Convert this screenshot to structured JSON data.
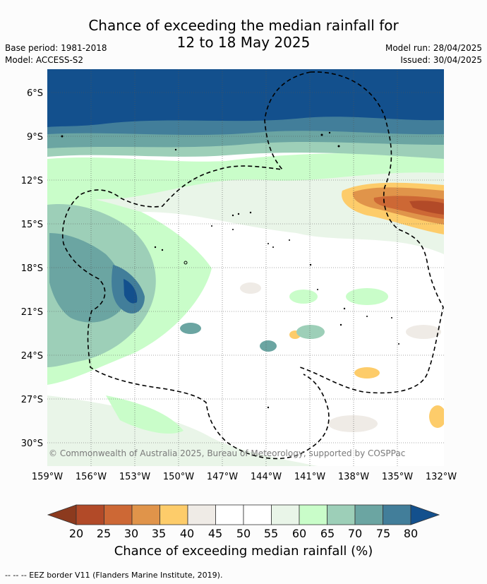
{
  "title": {
    "line1": "Chance of exceeding the median rainfall for",
    "line2": "12 to 18 May 2025"
  },
  "meta": {
    "base_period": "Base period: 1981-2018",
    "model": "Model: ACCESS-S2",
    "model_run": "Model run: 28/04/2025",
    "issued": "Issued: 30/04/2025"
  },
  "map": {
    "lat_labels": [
      "6°S",
      "9°S",
      "12°S",
      "15°S",
      "18°S",
      "21°S",
      "24°S",
      "27°S",
      "30°S"
    ],
    "lon_labels": [
      "159°W",
      "156°W",
      "153°W",
      "150°W",
      "147°W",
      "144°W",
      "141°W",
      "138°W",
      "135°W",
      "132°W"
    ],
    "copyright": "© Commonwealth of Australia 2025, Bureau of Meteorology, supported by COSPPac"
  },
  "colorbar": {
    "ticks": [
      "20",
      "25",
      "30",
      "35",
      "40",
      "45",
      "50",
      "55",
      "60",
      "65",
      "70",
      "75",
      "80"
    ],
    "colors": [
      "#8c3a1e",
      "#b24a28",
      "#cd6835",
      "#e0944a",
      "#fdcc6a",
      "#efebe6",
      "#ffffff",
      "#ffffff",
      "#e9f5e8",
      "#c9fdc9",
      "#9dcfb8",
      "#6ba5a2",
      "#427e9a",
      "#13508d"
    ],
    "label": "Chance of exceeding median rainfall (%)"
  },
  "footnote": "--  --  -- EEZ border V11 (Flanders Marine Institute, 2019)."
}
